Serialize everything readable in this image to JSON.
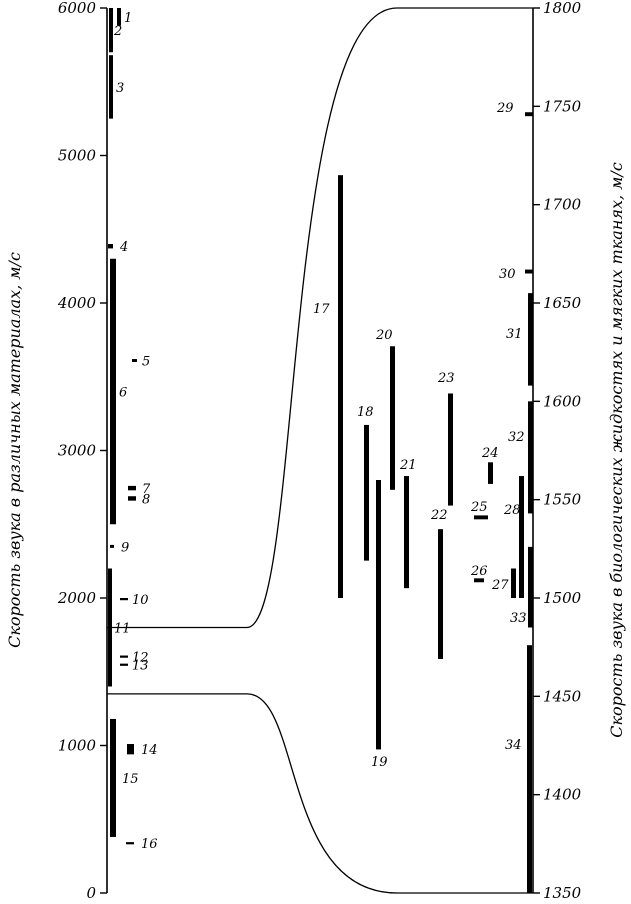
{
  "chart_data": {
    "type": "bar",
    "left_axis": {
      "title": "Скорость звука в различных материалах,  м/с",
      "range": [
        0,
        6000
      ],
      "ticks": [
        0,
        1000,
        2000,
        3000,
        4000,
        5000,
        6000
      ],
      "tick_labels": [
        "0",
        "1000",
        "2000",
        "3000",
        "4000",
        "5000",
        "6000"
      ]
    },
    "right_axis": {
      "title": "Скорость звука в биологических жидкостях и мягких тканях,  м/с",
      "range": [
        1350,
        1800
      ],
      "ticks": [
        1350,
        1400,
        1450,
        1500,
        1550,
        1600,
        1650,
        1700,
        1750,
        1800
      ],
      "tick_labels": [
        "1350",
        "1400",
        "1450",
        "1500",
        "1550",
        "1600",
        "1650",
        "1700",
        "1750",
        "1800"
      ]
    },
    "left_bars": [
      {
        "label": "1",
        "low": 5880,
        "high": 6000
      },
      {
        "label": "2",
        "low": 5700,
        "high": 6000
      },
      {
        "label": "3",
        "low": 5250,
        "high": 5680
      },
      {
        "label": "4",
        "low": 4370,
        "high": 4400
      },
      {
        "label": "5",
        "low": 3600,
        "high": 3620
      },
      {
        "label": "6",
        "low": 2500,
        "high": 4300
      },
      {
        "label": "7",
        "low": 2730,
        "high": 2760
      },
      {
        "label": "8",
        "low": 2660,
        "high": 2690
      },
      {
        "label": "9",
        "low": 2340,
        "high": 2360
      },
      {
        "label": "10",
        "low": 1985,
        "high": 2000
      },
      {
        "label": "11",
        "low": 1400,
        "high": 2200
      },
      {
        "label": "12",
        "low": 1595,
        "high": 1610
      },
      {
        "label": "13",
        "low": 1540,
        "high": 1555
      },
      {
        "label": "14",
        "low": 940,
        "high": 1010
      },
      {
        "label": "15",
        "low": 380,
        "high": 1180
      },
      {
        "label": "16",
        "low": 330,
        "high": 345
      }
    ],
    "right_bars": [
      {
        "label": "17",
        "low": 1500,
        "high": 1715
      },
      {
        "label": "18",
        "low": 1519,
        "high": 1588
      },
      {
        "label": "19",
        "low": 1423,
        "high": 1560
      },
      {
        "label": "20",
        "low": 1555,
        "high": 1628
      },
      {
        "label": "21",
        "low": 1505,
        "high": 1562
      },
      {
        "label": "22",
        "low": 1469,
        "high": 1535
      },
      {
        "label": "23",
        "low": 1547,
        "high": 1604
      },
      {
        "label": "24",
        "low": 1558,
        "high": 1569
      },
      {
        "label": "25",
        "low": 1540,
        "high": 1542
      },
      {
        "label": "26",
        "low": 1508,
        "high": 1510
      },
      {
        "label": "27",
        "low": 1500,
        "high": 1515
      },
      {
        "label": "28",
        "low": 1500,
        "high": 1562
      },
      {
        "label": "29",
        "low": 1745,
        "high": 1747
      },
      {
        "label": "30",
        "low": 1665,
        "high": 1667
      },
      {
        "label": "31",
        "low": 1608,
        "high": 1655
      },
      {
        "label": "32",
        "low": 1543,
        "high": 1600
      },
      {
        "label": "33",
        "low": 1485,
        "high": 1526
      },
      {
        "label": "34",
        "low": 1350,
        "high": 1476
      }
    ]
  }
}
